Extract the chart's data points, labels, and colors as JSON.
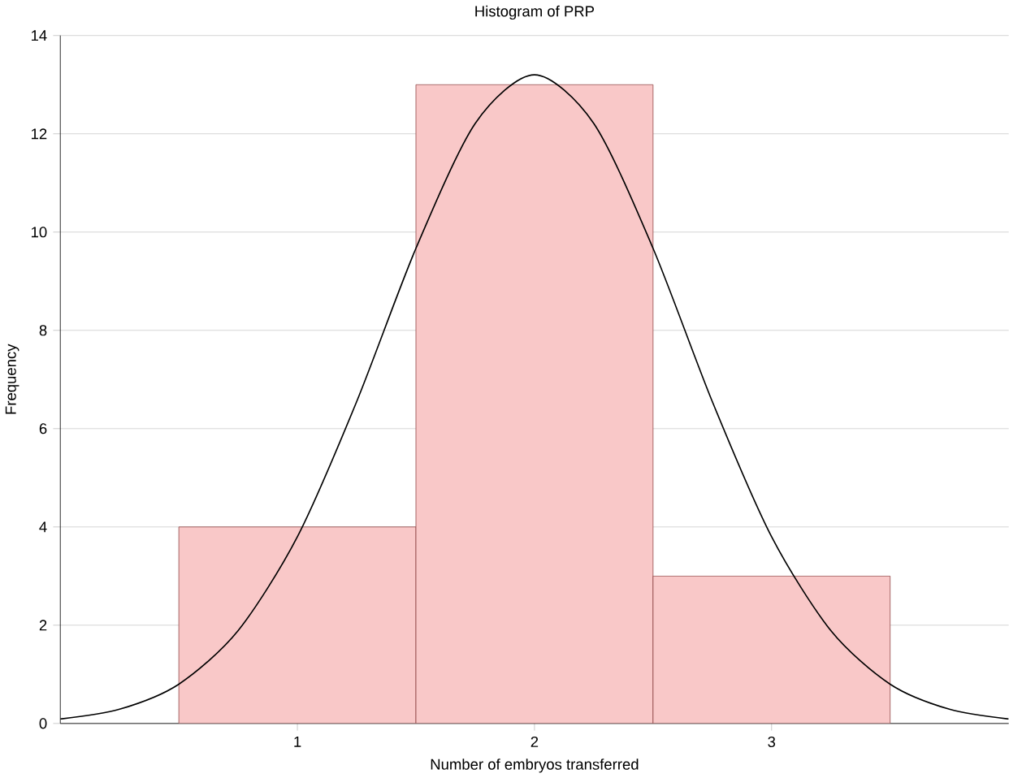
{
  "chart_data": {
    "type": "histogram",
    "title": "Histogram of PRP",
    "xlabel": "Number of embryos transferred",
    "ylabel": "Frequency",
    "bins": [
      0.5,
      1.5,
      2.5,
      3.5
    ],
    "values": [
      4,
      13,
      3
    ],
    "color": "#f9c8c8",
    "xlim": [
      0,
      4
    ],
    "xticks": [
      1,
      2,
      3
    ],
    "ylim": [
      0,
      14
    ],
    "yticks": [
      0,
      2,
      4,
      6,
      8,
      10,
      12,
      14
    ],
    "grid": "y",
    "series": [
      {
        "type": "line",
        "color": "#000000",
        "x": [
          0,
          0.25,
          0.5,
          0.75,
          1,
          1.25,
          1.5,
          1.75,
          2,
          2.25,
          2.5,
          2.75,
          3,
          3.25,
          3.5,
          3.75,
          4
        ],
        "values": [
          0.09,
          0.29,
          0.8,
          1.89,
          3.8,
          6.55,
          9.67,
          12.21,
          13.2,
          12.21,
          9.67,
          6.55,
          3.8,
          1.89,
          0.8,
          0.29,
          0.09
        ]
      }
    ]
  }
}
